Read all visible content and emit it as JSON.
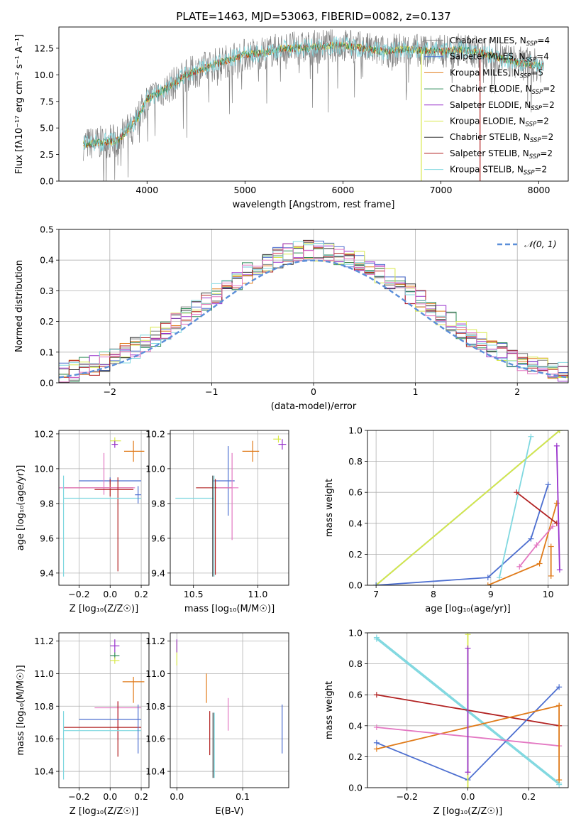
{
  "figure_title": "PLATE=1463, MJD=53063, FIBERID=0082, z=0.137",
  "colors": {
    "chabrier_miles": "#808080",
    "salpeter_miles": "#4d6fd0",
    "kroupa_miles": "#e07b1a",
    "chabrier_elodie": "#2e8b57",
    "salpeter_elodie": "#9932cc",
    "kroupa_elodie": "#d8e84a",
    "chabrier_stelib": "#333333",
    "salpeter_stelib": "#b22222",
    "kroupa_stelib": "#80d8e0",
    "normal_curve": "#5b8fd9",
    "pink": "#e377c2",
    "blue": "#5b7fd9"
  },
  "chart_data": [
    {
      "type": "line",
      "title": "PLATE=1463, MJD=53063, FIBERID=0082, z=0.137",
      "xlabel": "wavelength [Angstrom, rest frame]",
      "ylabel": "Flux [fλ10⁻¹⁷ erg cm⁻² s⁻¹ A⁻¹]",
      "xlim": [
        3100,
        8300
      ],
      "ylim": [
        0,
        14.5
      ],
      "xticks": [
        "4000",
        "5000",
        "6000",
        "7000",
        "8000"
      ],
      "yticks": [
        "0.0",
        "2.5",
        "5.0",
        "7.5",
        "10.0",
        "12.5"
      ],
      "legend_position": "top-right",
      "legend": [
        {
          "label": "Chabrier MILES, N",
          "sub": "SSP",
          "tail": "=4",
          "color_key": "chabrier_miles"
        },
        {
          "label": "Salpeter MILES, N",
          "sub": "SSP",
          "tail": "=4",
          "color_key": "salpeter_miles"
        },
        {
          "label": "Kroupa MILES, N",
          "sub": "SSP",
          "tail": "=5",
          "color_key": "kroupa_miles"
        },
        {
          "label": "Chabrier ELODIE, N",
          "sub": "SSP",
          "tail": "=2",
          "color_key": "chabrier_elodie"
        },
        {
          "label": "Salpeter ELODIE, N",
          "sub": "SSP",
          "tail": "=2",
          "color_key": "salpeter_elodie"
        },
        {
          "label": "Kroupa ELODIE, N",
          "sub": "SSP",
          "tail": "=2",
          "color_key": "kroupa_elodie"
        },
        {
          "label": "Chabrier STELIB, N",
          "sub": "SSP",
          "tail": "=2",
          "color_key": "chabrier_stelib"
        },
        {
          "label": "Salpeter STELIB, N",
          "sub": "SSP",
          "tail": "=2",
          "color_key": "salpeter_stelib"
        },
        {
          "label": "Kroupa STELIB, N",
          "sub": "SSP",
          "tail": "=2",
          "color_key": "kroupa_stelib"
        }
      ],
      "continuum": {
        "x": [
          3350,
          3500,
          3700,
          3900,
          4000,
          4200,
          4400,
          4600,
          4800,
          5000,
          5200,
          5400,
          5600,
          5800,
          6000,
          6200,
          6400,
          6600,
          6800,
          7000,
          7200,
          7400,
          7600,
          7800,
          8050
        ],
        "y": [
          3.5,
          3.6,
          3.8,
          5.8,
          7.7,
          8.7,
          10.0,
          10.7,
          11.3,
          11.9,
          12.1,
          12.5,
          12.5,
          12.7,
          12.8,
          12.5,
          12.2,
          12.4,
          12.3,
          12.2,
          12.4,
          12.1,
          11.6,
          11.1,
          10.8
        ]
      },
      "vertical_drops": [
        {
          "x": 6800,
          "color_key": "kroupa_elodie"
        },
        {
          "x": 7400,
          "color_key": "salpeter_stelib"
        }
      ]
    },
    {
      "type": "histogram",
      "xlabel": "(data-model)/error",
      "ylabel": "Normed distribution",
      "xlim": [
        -2.5,
        2.5
      ],
      "ylim": [
        0,
        0.5
      ],
      "xticks": [
        "−2",
        "−1",
        "0",
        "1",
        "2"
      ],
      "yticks": [
        "0.0",
        "0.1",
        "0.2",
        "0.3",
        "0.4",
        "0.5"
      ],
      "legend_position": "top-right",
      "normal_curve_label": "𝒩(0, 1)",
      "bin_width": 0.1,
      "base_distribution": "normal(0,1) with series-specific scatter"
    },
    {
      "type": "errorbar",
      "xlabel": "Z [log₁₀(Z/Z☉)]",
      "ylabel": "age  [log₁₀(age/yr)]",
      "xlim": [
        -0.33,
        0.25
      ],
      "ylim": [
        9.33,
        10.22
      ],
      "xticks": [
        "−0.2",
        "0.0",
        "0.2"
      ],
      "yticks": [
        "9.4",
        "9.6",
        "9.8",
        "10.0",
        "10.2"
      ],
      "points": [
        {
          "x": 0.03,
          "y": 10.16,
          "xerr": [
            0.03,
            0.04
          ],
          "yerr": [
            0.02,
            0.02
          ],
          "color_key": "kroupa_elodie"
        },
        {
          "x": 0.03,
          "y": 10.14,
          "xerr": [
            0.02,
            0.02
          ],
          "yerr": [
            0.02,
            0.02
          ],
          "color_key": "salpeter_elodie"
        },
        {
          "x": 0.15,
          "y": 10.1,
          "xerr": [
            0.06,
            0.07
          ],
          "yerr": [
            0.06,
            0.06
          ],
          "color_key": "kroupa_miles"
        },
        {
          "x": 0.0,
          "y": 9.93,
          "xerr": [
            0.2,
            0.2
          ],
          "yerr": [
            0.02,
            0.02
          ],
          "color_key": "salpeter_miles"
        },
        {
          "x": 0.0,
          "y": 9.89,
          "xerr": [
            0.3,
            0.15
          ],
          "yerr": [
            0.05,
            0.05
          ],
          "color_key": "salpeter_stelib"
        },
        {
          "x": -0.04,
          "y": 9.89,
          "xerr": [
            0.3,
            0.2
          ],
          "yerr": [
            0.04,
            0.2
          ],
          "color_key": "pink"
        },
        {
          "x": 0.05,
          "y": 9.88,
          "xerr": [
            0.15,
            0.1
          ],
          "yerr": [
            0.47,
            0.07
          ],
          "color_key": "salpeter_stelib"
        },
        {
          "x": -0.3,
          "y": 9.83,
          "xerr": [
            0.0,
            0.5
          ],
          "yerr": [
            0.45,
            0.13
          ],
          "color_key": "kroupa_stelib"
        },
        {
          "x": 0.18,
          "y": 9.85,
          "xerr": [
            0.02,
            0.02
          ],
          "yerr": [
            0.05,
            0.05
          ],
          "color_key": "salpeter_miles"
        }
      ]
    },
    {
      "type": "errorbar",
      "xlabel": "mass [log₁₀(M/M☉)]",
      "ylabel": "",
      "xlim": [
        10.32,
        11.24
      ],
      "ylim": [
        9.33,
        10.22
      ],
      "xticks": [
        "10.5",
        "11.0"
      ],
      "yticks": [
        "9.4",
        "9.6",
        "9.8",
        "10.0",
        "10.2"
      ],
      "points": [
        {
          "x": 11.16,
          "y": 10.17,
          "xerr": [
            0.04,
            0.02
          ],
          "yerr": [
            0.02,
            0.02
          ],
          "color_key": "kroupa_elodie"
        },
        {
          "x": 11.19,
          "y": 10.14,
          "xerr": [
            0.03,
            0.03
          ],
          "yerr": [
            0.03,
            0.03
          ],
          "color_key": "salpeter_elodie"
        },
        {
          "x": 10.96,
          "y": 10.1,
          "xerr": [
            0.08,
            0.05
          ],
          "yerr": [
            0.06,
            0.06
          ],
          "color_key": "kroupa_miles"
        },
        {
          "x": 10.77,
          "y": 9.93,
          "xerr": [
            0.12,
            0.05
          ],
          "yerr": [
            0.2,
            0.2
          ],
          "color_key": "salpeter_miles"
        },
        {
          "x": 10.67,
          "y": 9.89,
          "xerr": [
            0.15,
            0.13
          ],
          "yerr": [
            0.5,
            0.05
          ],
          "color_key": "salpeter_stelib"
        },
        {
          "x": 10.8,
          "y": 9.89,
          "xerr": [
            0.12,
            0.05
          ],
          "yerr": [
            0.3,
            0.2
          ],
          "color_key": "pink"
        },
        {
          "x": 10.66,
          "y": 9.83,
          "xerr": [
            0.3,
            0.0
          ],
          "yerr": [
            0.45,
            0.13
          ],
          "color_key": "kroupa_stelib"
        },
        {
          "x": 10.65,
          "y": 9.83,
          "xerr": [
            0.0,
            0.0
          ],
          "yerr": [
            0.45,
            0.13
          ],
          "color_key": "chabrier_stelib"
        }
      ]
    },
    {
      "type": "line",
      "xlabel": "age  [log₁₀(age/yr)]",
      "ylabel": "mass weight",
      "xlim": [
        6.85,
        10.35
      ],
      "ylim": [
        0,
        1.0
      ],
      "xticks": [
        "7",
        "8",
        "9",
        "10"
      ],
      "yticks": [
        "0.0",
        "0.2",
        "0.4",
        "0.6",
        "0.8",
        "1.0"
      ],
      "series": [
        {
          "color_key": "chabrier_elodie",
          "x": [
            7.0,
            10.2
          ],
          "y": [
            0.0,
            1.0
          ]
        },
        {
          "color_key": "kroupa_elodie",
          "x": [
            7.0,
            10.2
          ],
          "y": [
            0.0,
            1.0
          ]
        },
        {
          "color_key": "salpeter_miles",
          "x": [
            7.0,
            8.95,
            9.7,
            10.0
          ],
          "y": [
            0.0,
            0.05,
            0.3,
            0.65
          ]
        },
        {
          "color_key": "kroupa_stelib",
          "x": [
            9.15,
            9.7
          ],
          "y": [
            0.05,
            0.96
          ]
        },
        {
          "color_key": "kroupa_miles",
          "x": [
            8.95,
            9.85,
            10.15
          ],
          "y": [
            0.0,
            0.14,
            0.53
          ]
        },
        {
          "color_key": "pink",
          "x": [
            9.5,
            9.8,
            10.08
          ],
          "y": [
            0.12,
            0.26,
            0.38
          ]
        },
        {
          "color_key": "salpeter_stelib",
          "x": [
            9.45,
            10.15
          ],
          "y": [
            0.6,
            0.4
          ]
        },
        {
          "color_key": "salpeter_elodie",
          "x": [
            10.15,
            10.2
          ],
          "y": [
            0.9,
            0.1
          ]
        },
        {
          "color_key": "kroupa_miles",
          "x": [
            10.05,
            10.05
          ],
          "y": [
            0.06,
            0.25
          ]
        }
      ]
    },
    {
      "type": "errorbar",
      "xlabel": "Z [log₁₀(Z/Z☉)]",
      "ylabel": "mass [log₁₀(M/M☉)]",
      "xlim": [
        -0.33,
        0.25
      ],
      "ylim": [
        10.3,
        11.25
      ],
      "xticks": [
        "−0.2",
        "0.0",
        "0.2"
      ],
      "yticks": [
        "10.4",
        "10.6",
        "10.8",
        "11.0",
        "11.2"
      ],
      "points": [
        {
          "x": 0.03,
          "y": 11.17,
          "xerr": [
            0.03,
            0.03
          ],
          "yerr": [
            0.04,
            0.04
          ],
          "color_key": "salpeter_elodie"
        },
        {
          "x": 0.03,
          "y": 11.11,
          "xerr": [
            0.03,
            0.03
          ],
          "yerr": [
            0.02,
            0.02
          ],
          "color_key": "chabrier_elodie"
        },
        {
          "x": 0.03,
          "y": 11.08,
          "xerr": [
            0.03,
            0.03
          ],
          "yerr": [
            0.02,
            0.02
          ],
          "color_key": "kroupa_elodie"
        },
        {
          "x": 0.15,
          "y": 10.95,
          "xerr": [
            0.07,
            0.07
          ],
          "yerr": [
            0.13,
            0.03
          ],
          "color_key": "kroupa_miles"
        },
        {
          "x": 0.05,
          "y": 10.79,
          "xerr": [
            0.15,
            0.15
          ],
          "yerr": [
            0.2,
            0.04
          ],
          "color_key": "pink"
        },
        {
          "x": 0.05,
          "y": 10.67,
          "xerr": [
            0.35,
            0.15
          ],
          "yerr": [
            0.18,
            0.16
          ],
          "color_key": "salpeter_stelib"
        },
        {
          "x": 0.0,
          "y": 10.72,
          "xerr": [
            0.2,
            0.2
          ],
          "yerr": [
            0.0,
            0.0
          ],
          "color_key": "salpeter_miles"
        },
        {
          "x": -0.3,
          "y": 10.65,
          "xerr": [
            0.0,
            0.5
          ],
          "yerr": [
            0.3,
            0.12
          ],
          "color_key": "kroupa_stelib"
        },
        {
          "x": 0.18,
          "y": 10.66,
          "xerr": [
            0.0,
            0.0
          ],
          "yerr": [
            0.15,
            0.15
          ],
          "color_key": "salpeter_miles"
        }
      ]
    },
    {
      "type": "errorbar",
      "xlabel": "E(B-V)",
      "ylabel": "",
      "xlim": [
        -0.01,
        0.17
      ],
      "ylim": [
        10.3,
        11.25
      ],
      "xticks": [
        "0.0",
        "0.1"
      ],
      "yticks": [
        "10.4",
        "10.6",
        "10.8",
        "11.0",
        "11.2"
      ],
      "points": [
        {
          "x": 0.0,
          "y": 11.1,
          "xerr": [
            0,
            0
          ],
          "yerr": [
            0.05,
            0.1
          ],
          "color_key": "kroupa_elodie"
        },
        {
          "x": 0.0,
          "y": 11.17,
          "xerr": [
            0,
            0
          ],
          "yerr": [
            0.04,
            0.04
          ],
          "color_key": "salpeter_elodie"
        },
        {
          "x": 0.045,
          "y": 10.9,
          "xerr": [
            0,
            0
          ],
          "yerr": [
            0.08,
            0.1
          ],
          "color_key": "kroupa_miles"
        },
        {
          "x": 0.05,
          "y": 10.65,
          "xerr": [
            0,
            0
          ],
          "yerr": [
            0.15,
            0.12
          ],
          "color_key": "salpeter_stelib"
        },
        {
          "x": 0.055,
          "y": 10.56,
          "xerr": [
            0,
            0
          ],
          "yerr": [
            0.2,
            0.2
          ],
          "color_key": "chabrier_stelib"
        },
        {
          "x": 0.057,
          "y": 10.56,
          "xerr": [
            0,
            0
          ],
          "yerr": [
            0.2,
            0.2
          ],
          "color_key": "kroupa_stelib"
        },
        {
          "x": 0.078,
          "y": 10.75,
          "xerr": [
            0,
            0
          ],
          "yerr": [
            0.1,
            0.1
          ],
          "color_key": "pink"
        },
        {
          "x": 0.16,
          "y": 10.66,
          "xerr": [
            0,
            0
          ],
          "yerr": [
            0.15,
            0.15
          ],
          "color_key": "salpeter_miles"
        }
      ]
    },
    {
      "type": "line",
      "xlabel": "Z [log₁₀(Z/Z☉)]",
      "ylabel": "mass weight",
      "xlim": [
        -0.33,
        0.33
      ],
      "ylim": [
        0,
        1.0
      ],
      "xticks": [
        "−0.2",
        "0.0",
        "0.2"
      ],
      "yticks": [
        "0.0",
        "0.2",
        "0.4",
        "0.6",
        "0.8",
        "1.0"
      ],
      "series": [
        {
          "color_key": "kroupa_stelib",
          "x": [
            -0.3,
            0.3
          ],
          "y": [
            0.97,
            0.03
          ]
        },
        {
          "color_key": "kroupa_stelib",
          "x": [
            -0.3,
            0.3
          ],
          "y": [
            0.96,
            0.02
          ]
        },
        {
          "color_key": "salpeter_stelib",
          "x": [
            -0.3,
            0.3
          ],
          "y": [
            0.6,
            0.4
          ]
        },
        {
          "color_key": "salpeter_miles",
          "x": [
            -0.3,
            0.0,
            0.3
          ],
          "y": [
            0.29,
            0.05,
            0.65
          ]
        },
        {
          "color_key": "kroupa_miles",
          "x": [
            -0.3,
            0.3
          ],
          "y": [
            0.25,
            0.53
          ]
        },
        {
          "color_key": "pink",
          "x": [
            -0.3,
            0.3
          ],
          "y": [
            0.39,
            0.27
          ]
        },
        {
          "color_key": "kroupa_elodie",
          "x": [
            0.0,
            0.0
          ],
          "y": [
            0.0,
            0.99
          ]
        },
        {
          "color_key": "salpeter_elodie",
          "x": [
            0.0,
            0.0
          ],
          "y": [
            0.1,
            0.9
          ]
        },
        {
          "color_key": "kroupa_miles",
          "x": [
            0.3,
            0.3
          ],
          "y": [
            0.05,
            0.53
          ]
        }
      ]
    }
  ]
}
